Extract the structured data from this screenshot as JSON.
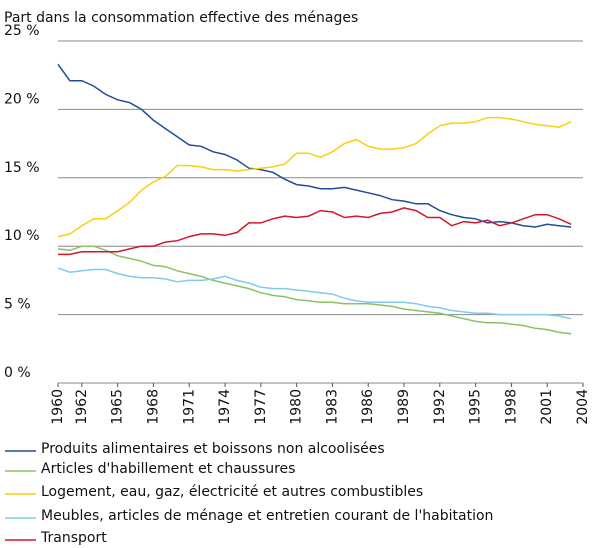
{
  "chart_data": {
    "type": "line",
    "title": "Part dans la consommation effective des ménages",
    "x": [
      1960,
      1961,
      1962,
      1963,
      1964,
      1965,
      1966,
      1967,
      1968,
      1969,
      1970,
      1971,
      1972,
      1973,
      1974,
      1975,
      1976,
      1977,
      1978,
      1979,
      1980,
      1981,
      1982,
      1983,
      1984,
      1985,
      1986,
      1987,
      1988,
      1989,
      1990,
      1991,
      1992,
      1993,
      1994,
      1995,
      1996,
      1997,
      1998,
      1999,
      2000,
      2001,
      2002,
      2003
    ],
    "xlim": [
      1960,
      2004
    ],
    "xticks": [
      1960,
      1962,
      1965,
      1968,
      1971,
      1974,
      1977,
      1980,
      1983,
      1986,
      1989,
      1992,
      1995,
      1998,
      2001,
      2004
    ],
    "ylim": [
      0,
      25
    ],
    "yticks": [
      {
        "value": 0,
        "label": "0 %"
      },
      {
        "value": 5,
        "label": "5 %"
      },
      {
        "value": 10,
        "label": "10 %"
      },
      {
        "value": 15,
        "label": "15 %"
      },
      {
        "value": 20,
        "label": "20 %"
      },
      {
        "value": 25,
        "label": "25 %"
      }
    ],
    "grid": true,
    "series": [
      {
        "name": "Produits alimentaires et boissons non alcoolisées",
        "color": "#1f4e96",
        "values": [
          23.3,
          22.1,
          22.1,
          21.7,
          21.1,
          20.7,
          20.5,
          20.0,
          19.2,
          18.6,
          18.0,
          17.4,
          17.3,
          16.9,
          16.7,
          16.3,
          15.7,
          15.6,
          15.4,
          14.9,
          14.5,
          14.4,
          14.2,
          14.2,
          14.3,
          14.1,
          13.9,
          13.7,
          13.4,
          13.3,
          13.1,
          13.1,
          12.6,
          12.3,
          12.1,
          12.0,
          11.7,
          11.8,
          11.7,
          11.5,
          11.4,
          11.6,
          11.5,
          11.4
        ]
      },
      {
        "name": "Articles d'habillement et chaussures",
        "color": "#8dc063",
        "values": [
          9.8,
          9.7,
          10.0,
          10.0,
          9.7,
          9.3,
          9.1,
          8.9,
          8.6,
          8.5,
          8.2,
          8.0,
          7.8,
          7.5,
          7.3,
          7.1,
          6.9,
          6.6,
          6.4,
          6.3,
          6.1,
          6.0,
          5.9,
          5.9,
          5.8,
          5.8,
          5.8,
          5.7,
          5.6,
          5.4,
          5.3,
          5.2,
          5.1,
          4.9,
          4.7,
          4.5,
          4.4,
          4.4,
          4.3,
          4.2,
          4.0,
          3.9,
          3.7,
          3.6
        ]
      },
      {
        "name": "Logement, eau, gaz, électricité et autres combustibles",
        "color": "#f5d10f",
        "values": [
          10.7,
          10.9,
          11.5,
          12.0,
          12.0,
          12.6,
          13.2,
          14.1,
          14.7,
          15.1,
          15.9,
          15.9,
          15.8,
          15.6,
          15.6,
          15.5,
          15.6,
          15.7,
          15.8,
          16.0,
          16.8,
          16.8,
          16.5,
          16.9,
          17.5,
          17.8,
          17.3,
          17.1,
          17.1,
          17.2,
          17.5,
          18.2,
          18.8,
          19.0,
          19.0,
          19.1,
          19.4,
          19.4,
          19.3,
          19.1,
          18.9,
          18.8,
          18.7,
          19.1
        ]
      },
      {
        "name": "Meubles, articles de ménage et entretien courant de l'habitation",
        "color": "#7ecbea",
        "values": [
          8.4,
          8.1,
          8.2,
          8.3,
          8.3,
          8.0,
          7.8,
          7.7,
          7.7,
          7.6,
          7.4,
          7.5,
          7.5,
          7.6,
          7.8,
          7.5,
          7.3,
          7.0,
          6.9,
          6.9,
          6.8,
          6.7,
          6.6,
          6.5,
          6.2,
          6.0,
          5.9,
          5.9,
          5.9,
          5.9,
          5.8,
          5.6,
          5.5,
          5.3,
          5.2,
          5.1,
          5.1,
          5.0,
          5.0,
          5.0,
          5.0,
          5.0,
          4.9,
          4.7
        ]
      },
      {
        "name": "Transport",
        "color": "#d1162c",
        "values": [
          9.4,
          9.4,
          9.6,
          9.6,
          9.6,
          9.6,
          9.8,
          10.0,
          10.0,
          10.3,
          10.4,
          10.7,
          10.9,
          10.9,
          10.8,
          11.0,
          11.7,
          11.7,
          12.0,
          12.2,
          12.1,
          12.2,
          12.6,
          12.5,
          12.1,
          12.2,
          12.1,
          12.4,
          12.5,
          12.8,
          12.6,
          12.1,
          12.1,
          11.5,
          11.8,
          11.7,
          11.9,
          11.5,
          11.7,
          12.0,
          12.3,
          12.3,
          12.0,
          11.6
        ]
      }
    ]
  }
}
